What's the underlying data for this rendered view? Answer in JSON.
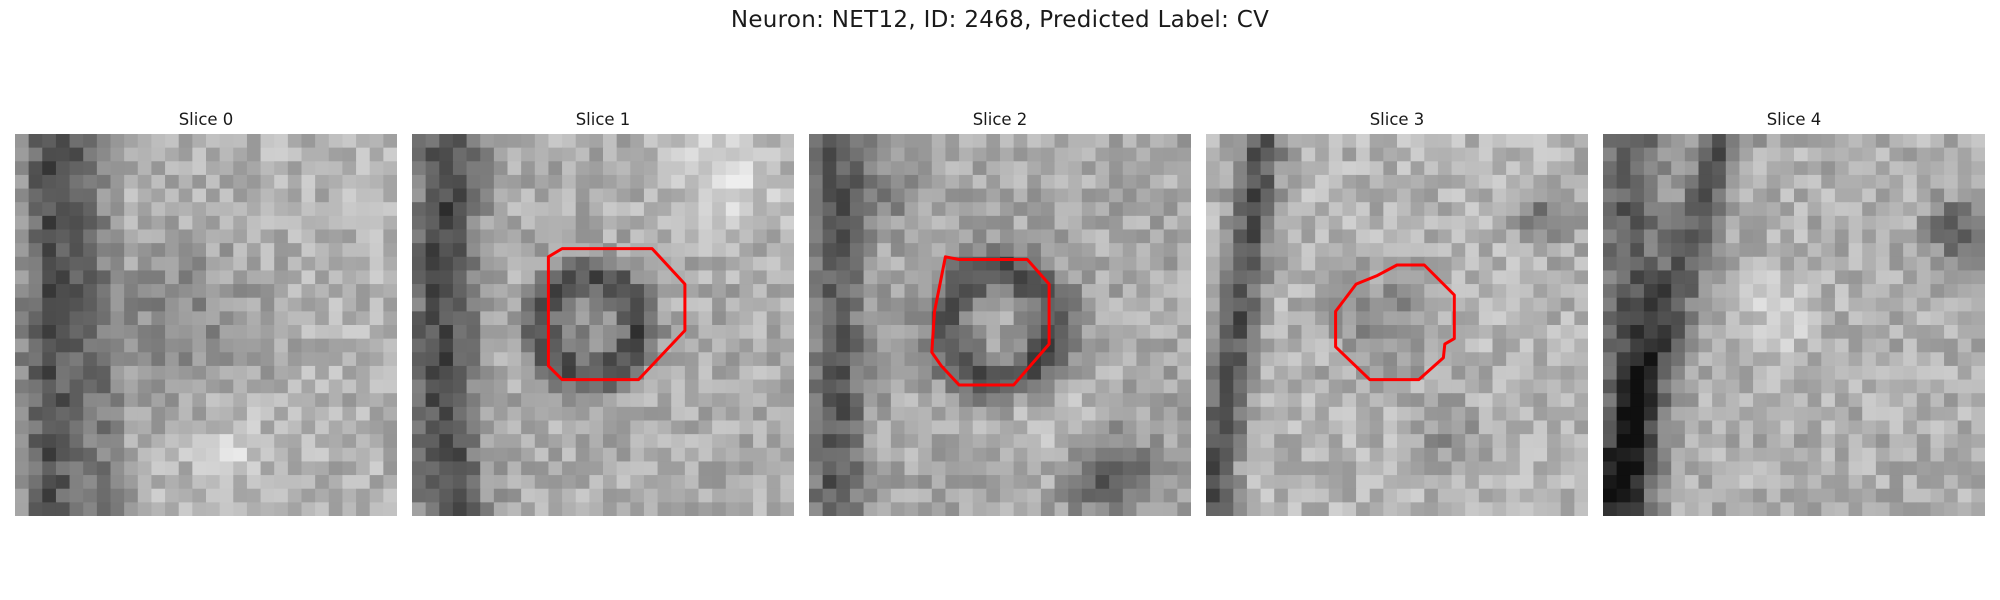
{
  "figure": {
    "title": "Neuron: NET12, ID: 2468, Predicted Label: CV"
  },
  "panels": [
    {
      "title": "Slice 0",
      "has_contour": false
    },
    {
      "title": "Slice 1",
      "has_contour": true
    },
    {
      "title": "Slice 2",
      "has_contour": true
    },
    {
      "title": "Slice 3",
      "has_contour": true
    },
    {
      "title": "Slice 4",
      "has_contour": false
    }
  ],
  "colors": {
    "contour": "#ff0000",
    "background": "#ffffff"
  },
  "colormap": "gray"
}
